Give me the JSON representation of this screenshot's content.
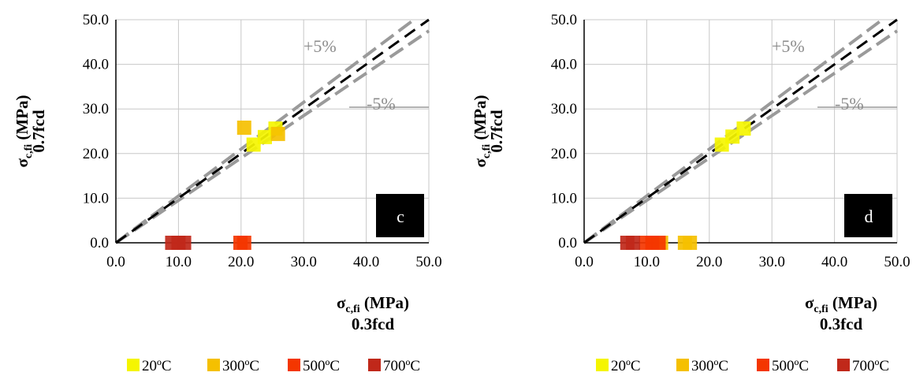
{
  "chart_data": [
    {
      "type": "scatter",
      "panel_label": "c",
      "ylabel_main": "σ",
      "ylabel_sub": "c,fi",
      "ylabel_unit": " (MPa)",
      "ylabel_line2": "0.7fcd",
      "xlabel_main": "σ",
      "xlabel_sub": "c,fi",
      "xlabel_unit": " (MPa)",
      "xlabel_line2": "0.3fcd",
      "xlim": [
        0,
        50
      ],
      "ylim": [
        0,
        50
      ],
      "xticks": [
        "0.0",
        "10.0",
        "20.0",
        "30.0",
        "40.0",
        "50.0"
      ],
      "yticks": [
        "0.0",
        "10.0",
        "20.0",
        "30.0",
        "40.0",
        "50.0"
      ],
      "grid": true,
      "legend_position": "bottom",
      "reference_lines": {
        "upper_label": "+5%",
        "lower_label": "-5%"
      },
      "series": [
        {
          "name": "20ºC",
          "color": "#f5f500",
          "points": [
            [
              22.0,
              22.0
            ],
            [
              23.8,
              23.7
            ],
            [
              25.5,
              25.6
            ]
          ]
        },
        {
          "name": "300ºC",
          "color": "#f5c000",
          "points": [
            [
              20.5,
              25.8
            ],
            [
              25.9,
              24.4
            ]
          ]
        },
        {
          "name": "500ºC",
          "color": "#f43600",
          "points": [
            [
              19.9,
              0.0
            ],
            [
              20.5,
              0.0
            ]
          ]
        },
        {
          "name": "700ºC",
          "color": "#c0281a",
          "points": [
            [
              9.0,
              0.0
            ],
            [
              10.0,
              0.0
            ],
            [
              10.9,
              0.0
            ]
          ]
        }
      ]
    },
    {
      "type": "scatter",
      "panel_label": "d",
      "ylabel_main": "σ",
      "ylabel_sub": "c,fi",
      "ylabel_unit": " (MPa)",
      "ylabel_line2": "0.7fcd",
      "xlabel_main": "σ",
      "xlabel_sub": "c,fi",
      "xlabel_unit": " (MPa)",
      "xlabel_line2": "0.3fcd",
      "xlim": [
        0,
        50
      ],
      "ylim": [
        0,
        50
      ],
      "xticks": [
        "0.0",
        "10.0",
        "20.0",
        "30.0",
        "40.0",
        "50.0"
      ],
      "yticks": [
        "0.0",
        "10.0",
        "20.0",
        "30.0",
        "40.0",
        "50.0"
      ],
      "grid": true,
      "legend_position": "bottom",
      "reference_lines": {
        "upper_label": "+5%",
        "lower_label": "-5%"
      },
      "series": [
        {
          "name": "20ºC",
          "color": "#f5f500",
          "points": [
            [
              22.0,
              22.0
            ],
            [
              23.7,
              23.8
            ],
            [
              25.5,
              25.6
            ]
          ]
        },
        {
          "name": "300ºC",
          "color": "#f5c000",
          "points": [
            [
              12.3,
              0.0
            ],
            [
              16.1,
              0.0
            ],
            [
              16.9,
              0.0
            ]
          ]
        },
        {
          "name": "500ºC",
          "color": "#f43600",
          "points": [
            [
              9.9,
              0.0
            ],
            [
              10.9,
              0.0
            ],
            [
              11.9,
              0.0
            ]
          ]
        },
        {
          "name": "700ºC",
          "color": "#c0281a",
          "points": [
            [
              6.9,
              0.0
            ],
            [
              7.8,
              0.0
            ]
          ]
        }
      ]
    }
  ]
}
